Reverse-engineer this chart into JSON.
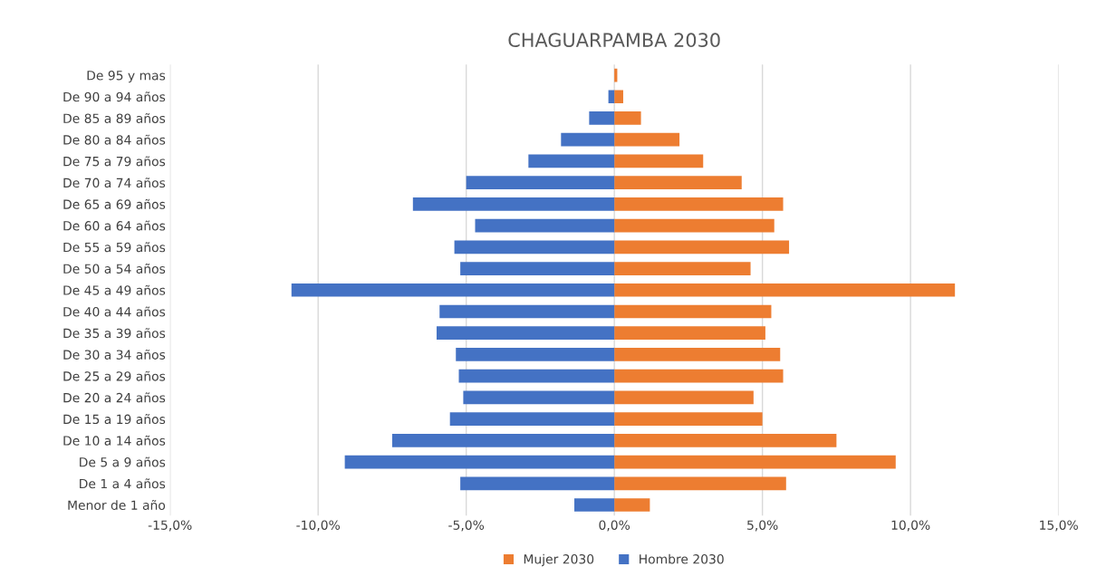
{
  "chart_data": {
    "type": "bar",
    "orientation": "horizontal",
    "title": "CHAGUARPAMBA 2030",
    "categories": [
      "De 95 y mas",
      "De 90 a 94 años",
      "De 85 a 89 años",
      "De 80 a 84 años",
      "De 75 a 79 años",
      "De 70 a 74 años",
      "De 65 a 69 años",
      "De 60 a 64 años",
      "De 55 a 59 años",
      "De 50 a 54 años",
      "De 45 a 49 años",
      "De 40 a 44 años",
      "De 35 a 39 años",
      "De 30 a 34 años",
      "De 25 a 29 años",
      "De 20 a 24 años",
      "De 15 a 19 años",
      "De 10 a 14 años",
      "De 5 a 9 años",
      "De 1 a 4 años",
      "Menor de 1 año"
    ],
    "series": [
      {
        "name": "Mujer 2030",
        "color": "#ed7d31",
        "values": [
          0.1,
          0.3,
          0.9,
          2.2,
          3.0,
          4.3,
          5.7,
          5.4,
          5.9,
          4.6,
          11.5,
          5.3,
          5.1,
          5.6,
          5.7,
          4.7,
          5.0,
          7.5,
          9.5,
          5.8,
          1.2
        ]
      },
      {
        "name": "Hombre 2030",
        "color": "#4472c4",
        "values": [
          0,
          -0.2,
          -0.85,
          -1.8,
          -2.9,
          -5.0,
          -6.8,
          -4.7,
          -5.4,
          -5.2,
          -10.9,
          -5.9,
          -6.0,
          -5.35,
          -5.25,
          -5.1,
          -5.55,
          -7.5,
          -9.1,
          -5.2,
          -1.35
        ]
      }
    ],
    "xlim": [
      -15,
      15
    ],
    "xticks": [
      {
        "value": -15,
        "label": "-15,0%"
      },
      {
        "value": -10,
        "label": "-10,0%"
      },
      {
        "value": -5,
        "label": "-5,0%"
      },
      {
        "value": 0,
        "label": "0,0%"
      },
      {
        "value": 5,
        "label": "5,0%"
      },
      {
        "value": 10,
        "label": "10,0%"
      },
      {
        "value": 15,
        "label": "15,0%"
      }
    ],
    "grid": "x",
    "legend": "bottom",
    "stacked": true
  }
}
